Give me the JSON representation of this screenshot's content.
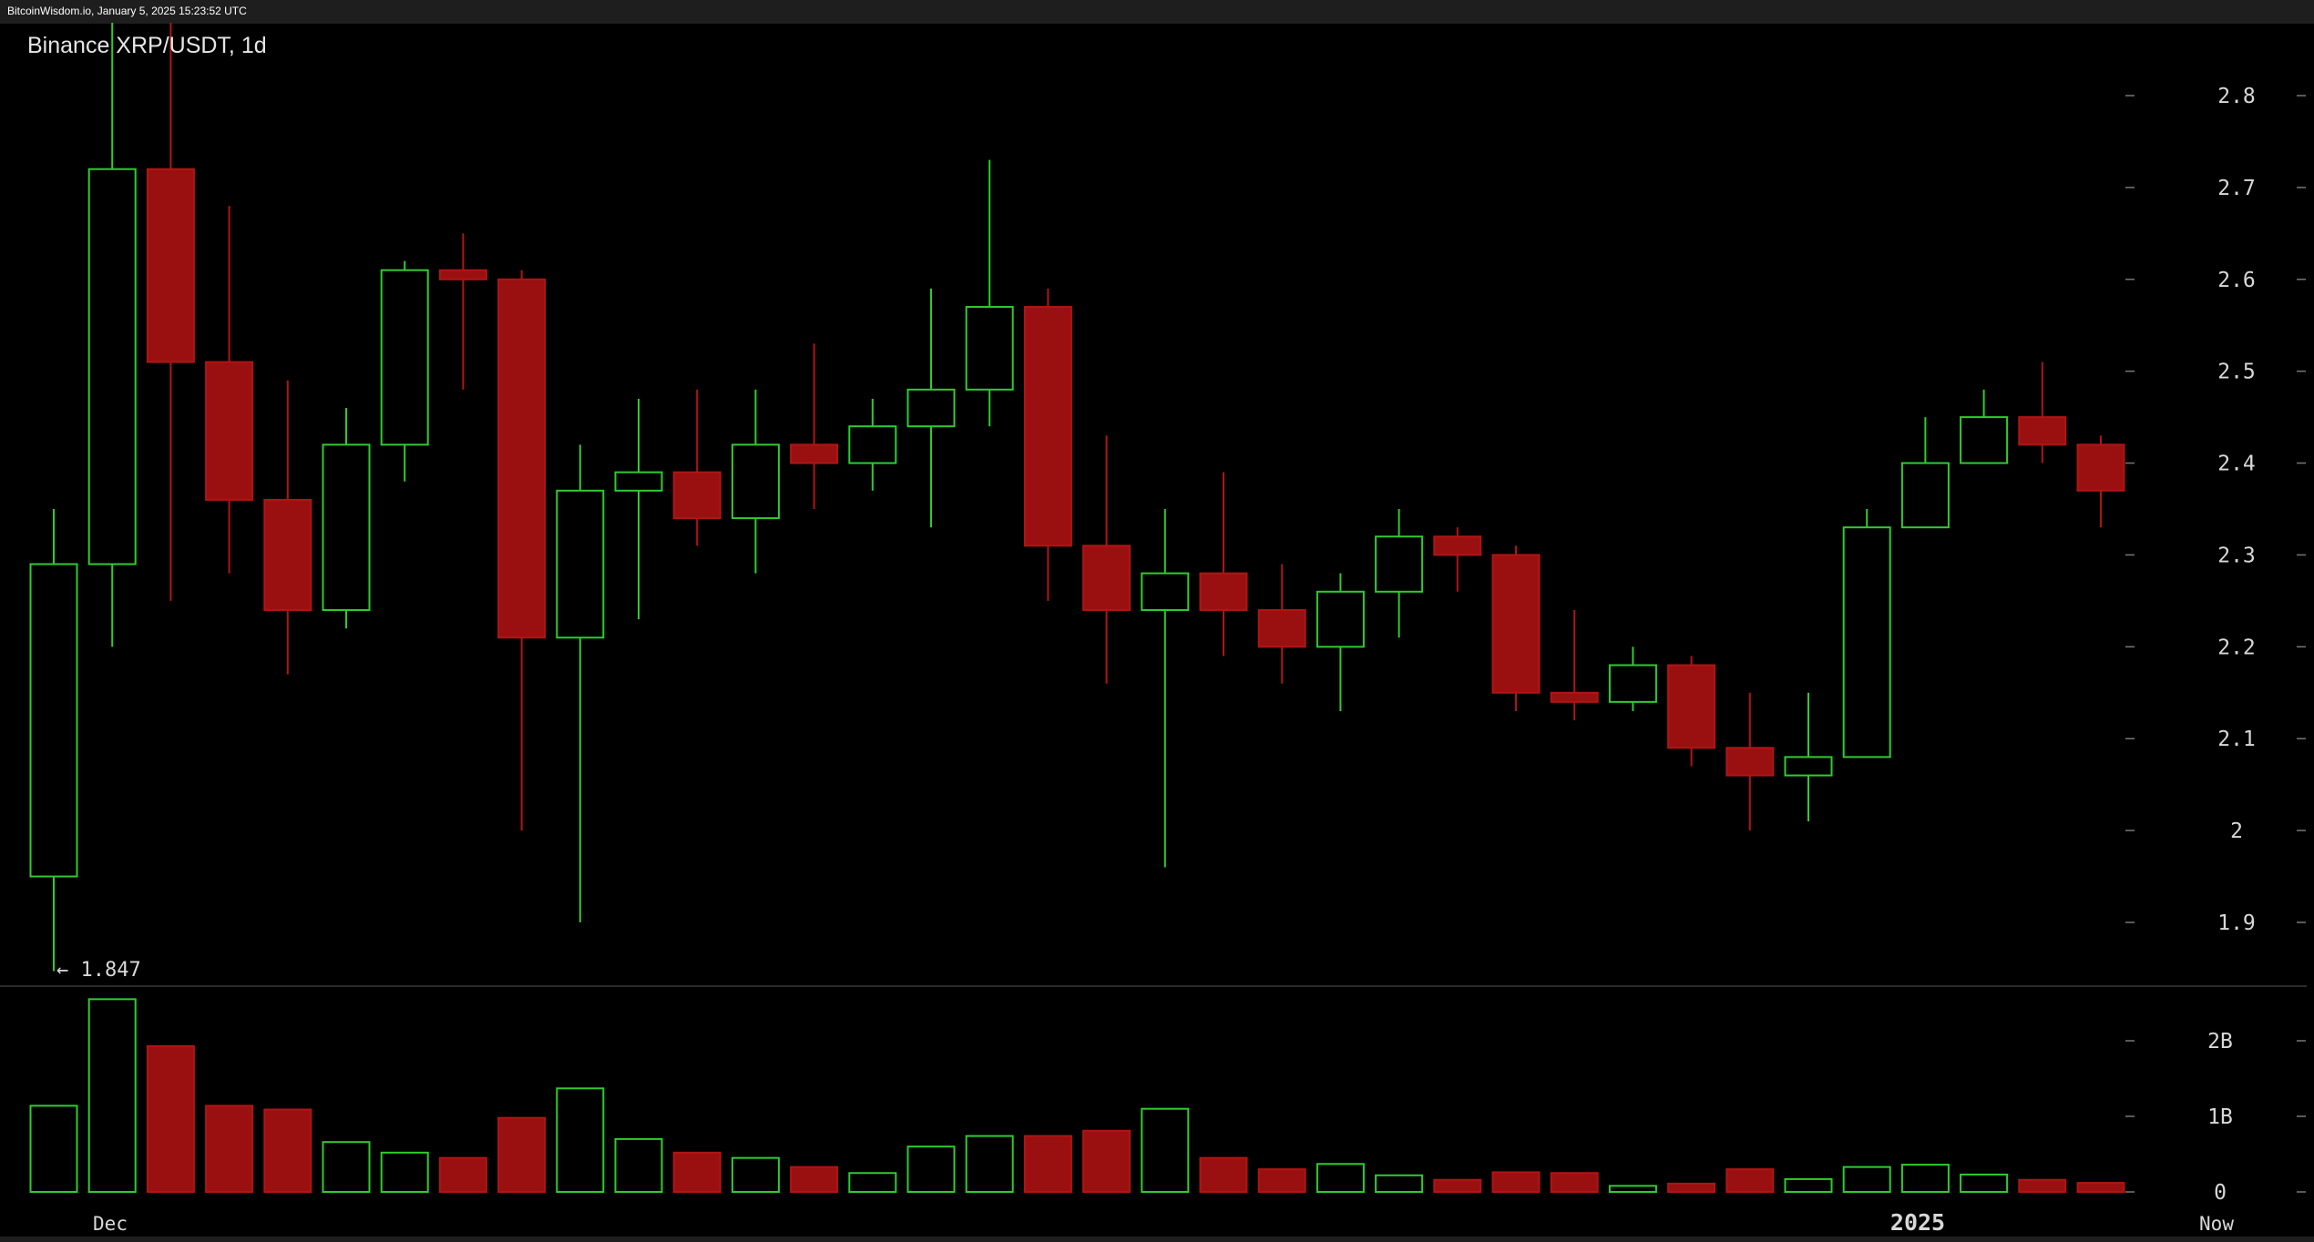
{
  "watermark": "BitcoinWisdom.io, January 5, 2025 15:23:52 UTC",
  "title": "Binance XRP/USDT, 1d",
  "colors": {
    "up": "#2ecc2e",
    "down": "#b01515",
    "down_fill": "#9a1010",
    "axis_text": "#d8d8d8",
    "grid_tick": "#777777",
    "separator": "#555555"
  },
  "chart_data": {
    "type": "candlestick",
    "title": "Binance XRP/USDT, 1d",
    "price_axis": {
      "ticks": [
        "2.8",
        "2.7",
        "2.6",
        "2.5",
        "2.4",
        "2.3",
        "2.2",
        "2.1",
        "2",
        "1.9"
      ],
      "range": [
        1.83,
        2.9
      ]
    },
    "volume_axis": {
      "ticks": [
        "2B",
        "1B",
        "0"
      ],
      "range": [
        0,
        2.6
      ]
    },
    "time_labels": [
      "Dec",
      "2025",
      "Now"
    ],
    "annotation": {
      "text": "← 1.847",
      "value": 1.847
    },
    "candles": [
      {
        "o": 1.95,
        "h": 2.35,
        "l": 1.847,
        "c": 2.29,
        "v": 1.14
      },
      {
        "o": 2.29,
        "h": 2.9,
        "l": 2.2,
        "c": 2.72,
        "v": 2.55
      },
      {
        "o": 2.72,
        "h": 2.9,
        "l": 2.25,
        "c": 2.51,
        "v": 1.93
      },
      {
        "o": 2.51,
        "h": 2.68,
        "l": 2.28,
        "c": 2.36,
        "v": 1.14
      },
      {
        "o": 2.36,
        "h": 2.49,
        "l": 2.17,
        "c": 2.24,
        "v": 1.09
      },
      {
        "o": 2.24,
        "h": 2.46,
        "l": 2.22,
        "c": 2.42,
        "v": 0.66
      },
      {
        "o": 2.42,
        "h": 2.62,
        "l": 2.38,
        "c": 2.61,
        "v": 0.52
      },
      {
        "o": 2.61,
        "h": 2.65,
        "l": 2.48,
        "c": 2.6,
        "v": 0.45
      },
      {
        "o": 2.6,
        "h": 2.61,
        "l": 2.0,
        "c": 2.21,
        "v": 0.98
      },
      {
        "o": 2.21,
        "h": 2.42,
        "l": 1.9,
        "c": 2.37,
        "v": 1.37
      },
      {
        "o": 2.37,
        "h": 2.47,
        "l": 2.23,
        "c": 2.39,
        "v": 0.7
      },
      {
        "o": 2.39,
        "h": 2.48,
        "l": 2.31,
        "c": 2.34,
        "v": 0.52
      },
      {
        "o": 2.34,
        "h": 2.48,
        "l": 2.28,
        "c": 2.42,
        "v": 0.45
      },
      {
        "o": 2.42,
        "h": 2.53,
        "l": 2.35,
        "c": 2.4,
        "v": 0.33
      },
      {
        "o": 2.4,
        "h": 2.47,
        "l": 2.37,
        "c": 2.44,
        "v": 0.25
      },
      {
        "o": 2.44,
        "h": 2.59,
        "l": 2.33,
        "c": 2.48,
        "v": 0.6
      },
      {
        "o": 2.48,
        "h": 2.73,
        "l": 2.44,
        "c": 2.57,
        "v": 0.74
      },
      {
        "o": 2.57,
        "h": 2.59,
        "l": 2.25,
        "c": 2.31,
        "v": 0.74
      },
      {
        "o": 2.31,
        "h": 2.43,
        "l": 2.16,
        "c": 2.24,
        "v": 0.81
      },
      {
        "o": 2.24,
        "h": 2.35,
        "l": 1.96,
        "c": 2.28,
        "v": 1.1
      },
      {
        "o": 2.28,
        "h": 2.39,
        "l": 2.19,
        "c": 2.24,
        "v": 0.45
      },
      {
        "o": 2.24,
        "h": 2.29,
        "l": 2.16,
        "c": 2.2,
        "v": 0.3
      },
      {
        "o": 2.2,
        "h": 2.28,
        "l": 2.13,
        "c": 2.26,
        "v": 0.37
      },
      {
        "o": 2.26,
        "h": 2.35,
        "l": 2.21,
        "c": 2.32,
        "v": 0.22
      },
      {
        "o": 2.32,
        "h": 2.33,
        "l": 2.26,
        "c": 2.3,
        "v": 0.16
      },
      {
        "o": 2.3,
        "h": 2.31,
        "l": 2.13,
        "c": 2.15,
        "v": 0.26
      },
      {
        "o": 2.15,
        "h": 2.24,
        "l": 2.12,
        "c": 2.14,
        "v": 0.25
      },
      {
        "o": 2.14,
        "h": 2.2,
        "l": 2.13,
        "c": 2.18,
        "v": 0.08
      },
      {
        "o": 2.18,
        "h": 2.19,
        "l": 2.07,
        "c": 2.09,
        "v": 0.11
      },
      {
        "o": 2.09,
        "h": 2.15,
        "l": 2.0,
        "c": 2.06,
        "v": 0.3
      },
      {
        "o": 2.06,
        "h": 2.15,
        "l": 2.01,
        "c": 2.08,
        "v": 0.17
      },
      {
        "o": 2.08,
        "h": 2.35,
        "l": 2.08,
        "c": 2.33,
        "v": 0.33
      },
      {
        "o": 2.33,
        "h": 2.45,
        "l": 2.33,
        "c": 2.4,
        "v": 0.36
      },
      {
        "o": 2.4,
        "h": 2.48,
        "l": 2.4,
        "c": 2.45,
        "v": 0.23
      },
      {
        "o": 2.45,
        "h": 2.51,
        "l": 2.4,
        "c": 2.42,
        "v": 0.16
      },
      {
        "o": 2.42,
        "h": 2.43,
        "l": 2.33,
        "c": 2.37,
        "v": 0.12
      }
    ]
  }
}
